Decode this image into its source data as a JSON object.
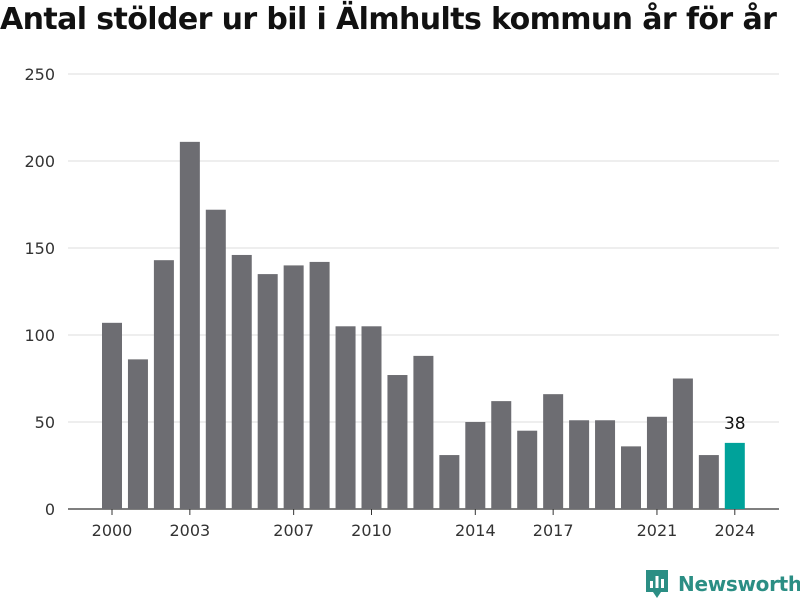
{
  "chart_data": {
    "type": "bar",
    "title": "Antal stölder ur bil i Älmhults kommun år för år",
    "categories": [
      2000,
      2001,
      2002,
      2003,
      2004,
      2005,
      2006,
      2007,
      2008,
      2009,
      2010,
      2011,
      2012,
      2013,
      2014,
      2015,
      2016,
      2017,
      2018,
      2019,
      2020,
      2021,
      2022,
      2023,
      2024
    ],
    "values": [
      107,
      86,
      143,
      211,
      172,
      146,
      135,
      140,
      142,
      105,
      105,
      77,
      88,
      31,
      50,
      62,
      45,
      66,
      51,
      51,
      36,
      53,
      75,
      31,
      38
    ],
    "x_tick_labels": [
      "2000",
      "2003",
      "2007",
      "2010",
      "2014",
      "2017",
      "2021",
      "2024"
    ],
    "y_ticks": [
      0,
      50,
      100,
      150,
      200,
      250
    ],
    "ylim": [
      0,
      250
    ],
    "grid": true,
    "highlight": {
      "category": 2024,
      "label": "38",
      "color": "#00a29a"
    },
    "bar_color": "#6d6d72"
  },
  "brand": {
    "name": "Newsworthy",
    "icon": "newsworthy-logo-icon",
    "color": "#2b8e84"
  }
}
